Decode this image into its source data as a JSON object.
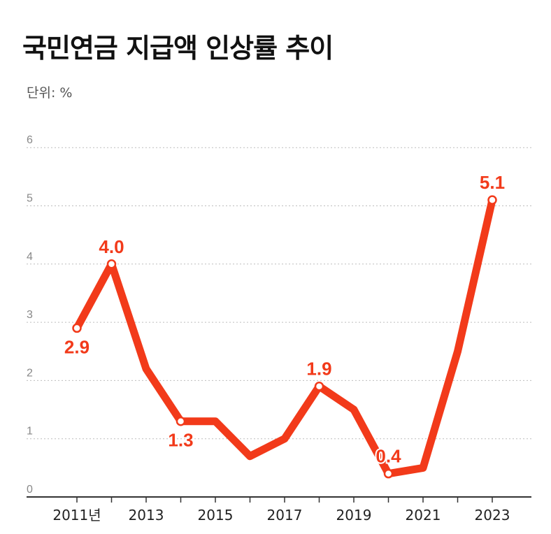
{
  "title": "국민연금 지급액 인상률 추이",
  "unit_label": "단위: %",
  "colors": {
    "line": "#f23a1a",
    "grid": "#bdbdbd",
    "axis": "#333333"
  },
  "chart_data": {
    "type": "line",
    "title": "국민연금 지급액 인상률 추이",
    "ylabel": "단위: %",
    "ylim": [
      0,
      6
    ],
    "yticks": [
      "0",
      "1",
      "2",
      "3",
      "4",
      "5",
      "6"
    ],
    "grid": true,
    "x": [
      2011,
      2012,
      2013,
      2014,
      2015,
      2016,
      2017,
      2018,
      2019,
      2020,
      2021,
      2022,
      2023
    ],
    "xtick_labels": [
      {
        "x": 2011,
        "label": "2011년"
      },
      {
        "x": 2013,
        "label": "2013"
      },
      {
        "x": 2015,
        "label": "2015"
      },
      {
        "x": 2017,
        "label": "2017"
      },
      {
        "x": 2019,
        "label": "2019"
      },
      {
        "x": 2021,
        "label": "2021"
      },
      {
        "x": 2023,
        "label": "2023"
      }
    ],
    "series": [
      {
        "values": [
          2.9,
          4.0,
          2.2,
          1.3,
          1.3,
          0.7,
          1.0,
          1.9,
          1.5,
          0.4,
          0.5,
          2.5,
          5.1
        ]
      }
    ],
    "data_labels": [
      {
        "x": 2011,
        "label": "2.9",
        "pos": "below"
      },
      {
        "x": 2012,
        "label": "4.0",
        "pos": "above"
      },
      {
        "x": 2014,
        "label": "1.3",
        "pos": "below"
      },
      {
        "x": 2018,
        "label": "1.9",
        "pos": "above"
      },
      {
        "x": 2020,
        "label": "0.4",
        "pos": "above"
      },
      {
        "x": 2023,
        "label": "5.1",
        "pos": "above"
      }
    ]
  }
}
